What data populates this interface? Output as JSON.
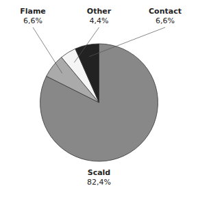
{
  "chart_data": {
    "type": "pie",
    "categories": [
      "Scald",
      "Flame",
      "Other",
      "Contact"
    ],
    "values": [
      82.4,
      6.6,
      4.4,
      6.6
    ],
    "value_labels": [
      "82,4%",
      "6,6%",
      "4,4%",
      "6,6%"
    ],
    "colors": [
      "#888888",
      "#aaaaaa",
      "#f5f5f5",
      "#222222"
    ],
    "data_labels": true
  }
}
